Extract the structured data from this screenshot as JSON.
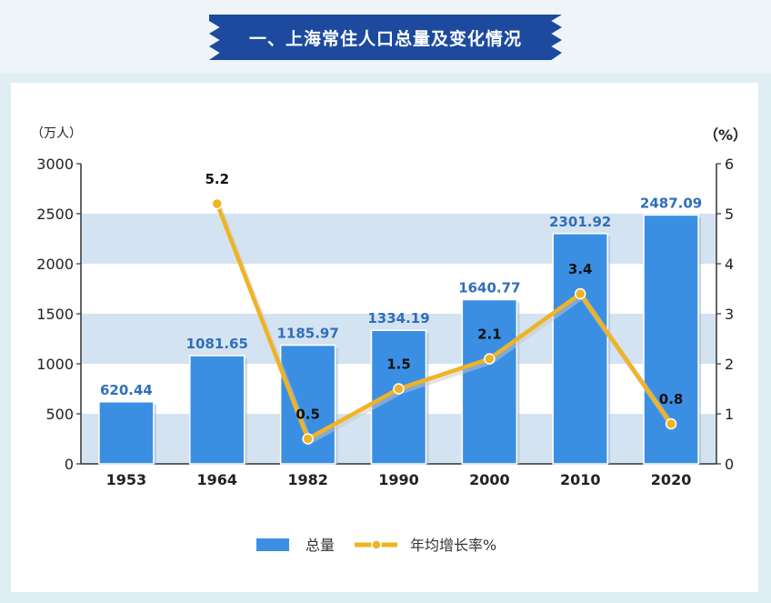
{
  "banner": {
    "title": "一、上海常住人口总量及变化情况"
  },
  "units": {
    "left": "（万人）",
    "right": "（%）"
  },
  "legend": {
    "bar_label": "总量",
    "line_label": "年均增长率%"
  },
  "colors": {
    "banner": "#1d4a9e",
    "bar": "#3b8fe3",
    "bar_label": "#2f6fba",
    "line": "#f0b323",
    "band": "#d4e3f1"
  },
  "chart_data": {
    "type": "bar",
    "categories": [
      "1953",
      "1964",
      "1982",
      "1990",
      "2000",
      "2010",
      "2020"
    ],
    "series": [
      {
        "name": "总量",
        "axis": "left",
        "values": [
          620.44,
          1081.65,
          1185.97,
          1334.19,
          1640.77,
          2301.92,
          2487.09
        ]
      },
      {
        "name": "年均增长率%",
        "type": "line",
        "axis": "right",
        "values": [
          null,
          5.2,
          0.5,
          1.5,
          2.1,
          3.4,
          0.8
        ]
      }
    ],
    "bar_labels": [
      "620.44",
      "1081.65",
      "1185.97",
      "1334.19",
      "1640.77",
      "2301.92",
      "2487.09"
    ],
    "line_labels": [
      "",
      "5.2",
      "0.5",
      "1.5",
      "2.1",
      "3.4",
      "0.8"
    ],
    "ylim": [
      0,
      3000
    ],
    "y_ticks": [
      "0",
      "500",
      "1000",
      "1500",
      "2000",
      "2500",
      "3000"
    ],
    "y2lim": [
      0,
      6
    ],
    "y2_ticks": [
      "0",
      "1",
      "2",
      "3",
      "4",
      "5",
      "6"
    ],
    "legend_position": "bottom"
  }
}
